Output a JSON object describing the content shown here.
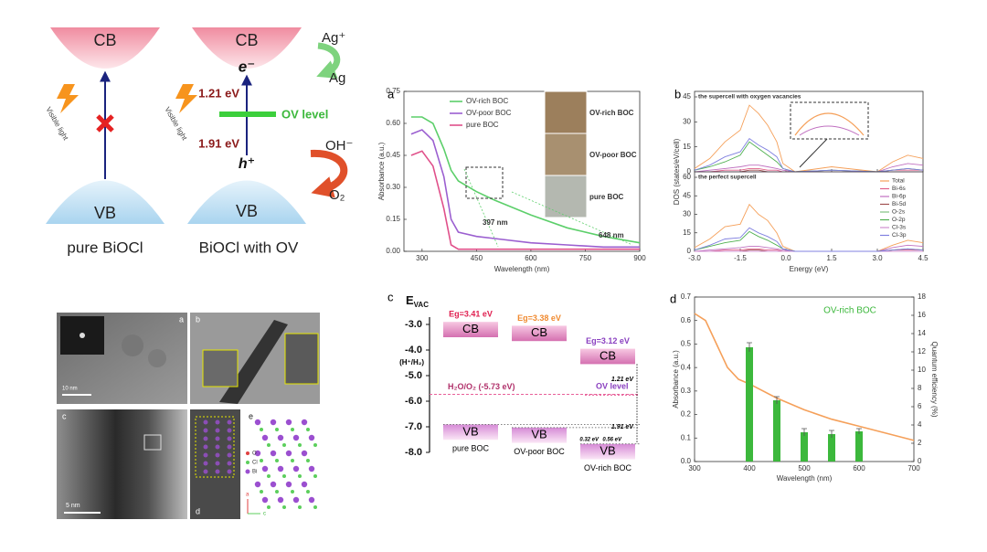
{
  "schematic": {
    "left": {
      "cb": "CB",
      "vb": "VB",
      "light": "Visible light",
      "caption": "pure BiOCl"
    },
    "right": {
      "cb": "CB",
      "vb": "VB",
      "light": "Visible light",
      "caption": "BiOCl with OV",
      "electron": "e⁻",
      "hole": "h⁺",
      "gap_upper": "1.21 eV",
      "gap_lower": "1.91 eV",
      "ov": "OV level",
      "ag_ion": "Ag⁺",
      "ag": "Ag",
      "oh": "OH⁻",
      "o2": "O₂"
    }
  },
  "micrographs": {
    "panels": [
      "a",
      "b",
      "c",
      "d",
      "e"
    ],
    "scale_bars": [
      "10 nm",
      "5 nm"
    ],
    "legend": [
      "O",
      "Cl",
      "Bi"
    ],
    "axis_labels": [
      "a",
      "c"
    ]
  },
  "chart_data": [
    {
      "type": "line",
      "label": "a",
      "xlabel": "Wavelength (nm)",
      "ylabel": "Absorbance (a.u.)",
      "x": [
        270,
        300,
        330,
        360,
        380,
        400,
        450,
        500,
        600,
        700,
        800,
        900
      ],
      "xlim": [
        250,
        900
      ],
      "xticks": [
        300,
        450,
        600,
        750,
        900
      ],
      "ylim": [
        0,
        0.75
      ],
      "yticks": [
        {
          "value": 0,
          "label": "0.00"
        },
        0.15,
        {
          "value": 0.3,
          "label": "0.30"
        },
        0.45,
        {
          "value": 0.6,
          "label": "0.60"
        },
        0.75
      ],
      "series": [
        {
          "name": "OV-rich BOC",
          "color": "#5ccf6a",
          "values": [
            0.63,
            0.63,
            0.6,
            0.48,
            0.38,
            0.33,
            0.28,
            0.24,
            0.17,
            0.11,
            0.07,
            0.04
          ]
        },
        {
          "name": "OV-poor BOC",
          "color": "#9b5fd0",
          "values": [
            0.55,
            0.57,
            0.52,
            0.35,
            0.15,
            0.09,
            0.07,
            0.06,
            0.04,
            0.03,
            0.02,
            0.02
          ]
        },
        {
          "name": "pure BOC",
          "color": "#e0508a",
          "values": [
            0.45,
            0.47,
            0.4,
            0.2,
            0.03,
            0.01,
            0.01,
            0.01,
            0.01,
            0.01,
            0.01,
            0.01
          ]
        }
      ],
      "annotations": [
        "397 nm",
        "648 nm"
      ],
      "inset_labels": [
        "OV-rich BOC",
        "OV-poor BOC",
        "pure BOC"
      ]
    },
    {
      "type": "dos",
      "label": "b",
      "xlabel": "Energy (eV)",
      "ylabel": "DOS (states/eV/cell)",
      "x": [
        -3,
        -2.5,
        -2,
        -1.5,
        -1.2,
        -0.9,
        -0.6,
        -0.3,
        -0.1,
        0.3,
        1.5,
        3,
        3.5,
        4,
        4.5
      ],
      "xlim": [
        -3,
        4.5
      ],
      "xticks": [
        {
          "value": -3,
          "label": "-3.0"
        },
        {
          "value": -1.5,
          "label": "-1.5"
        },
        {
          "value": 0,
          "label": "0.0"
        },
        {
          "value": 1.5,
          "label": "1.5"
        },
        {
          "value": 3,
          "label": "3.0"
        },
        {
          "value": 4.5,
          "label": "4.5"
        }
      ],
      "series": [
        {
          "name": "Total",
          "color": "#f5a05a"
        },
        {
          "name": "Bi-6s",
          "color": "#e0608a"
        },
        {
          "name": "Bi-6p",
          "color": "#c070c0"
        },
        {
          "name": "Bi-5d",
          "color": "#a05050"
        },
        {
          "name": "O-2s",
          "color": "#80c080"
        },
        {
          "name": "O-2p",
          "color": "#50b050"
        },
        {
          "name": "Cl-3s",
          "color": "#d090d0"
        },
        {
          "name": "Cl-3p",
          "color": "#8080e0"
        }
      ],
      "panels": [
        {
          "title": "the supercell with oxygen vacancies",
          "ylim": [
            0,
            45
          ],
          "yticks": [
            0,
            15,
            30,
            45
          ],
          "values": [
            [
              2,
              8,
              18,
              25,
              40,
              35,
              28,
              18,
              5,
              0,
              3,
              0,
              6,
              10,
              8
            ],
            [
              0,
              0,
              1,
              1,
              2,
              2,
              1,
              1,
              0,
              0,
              0,
              0,
              1,
              1,
              1
            ],
            [
              0,
              1,
              2,
              3,
              4,
              4,
              3,
              2,
              1,
              0,
              1,
              0,
              3,
              5,
              4
            ],
            [
              0,
              0,
              0,
              0,
              1,
              1,
              0,
              0,
              0,
              0,
              0,
              0,
              0,
              0,
              0
            ],
            [
              0,
              0,
              0,
              0,
              0,
              0,
              0,
              0,
              0,
              0,
              0,
              0,
              0,
              0,
              0
            ],
            [
              1,
              3,
              6,
              10,
              18,
              14,
              10,
              6,
              2,
              0,
              1,
              0,
              1,
              2,
              1
            ],
            [
              0,
              0,
              0,
              0,
              0,
              0,
              0,
              0,
              0,
              0,
              0,
              0,
              0,
              0,
              0
            ],
            [
              1,
              4,
              9,
              12,
              20,
              16,
              13,
              9,
              2,
              0,
              1,
              0,
              1,
              2,
              1
            ]
          ]
        },
        {
          "title": "the perfect supercell",
          "ylim": [
            0,
            60
          ],
          "yticks": [
            0,
            15,
            30,
            45,
            60
          ],
          "values": [
            [
              3,
              10,
              20,
              22,
              38,
              30,
              25,
              15,
              4,
              0,
              0,
              0,
              5,
              9,
              7
            ],
            [
              0,
              0,
              1,
              1,
              2,
              2,
              1,
              1,
              0,
              0,
              0,
              0,
              1,
              1,
              1
            ],
            [
              0,
              1,
              2,
              3,
              4,
              4,
              3,
              2,
              1,
              0,
              0,
              0,
              3,
              5,
              4
            ],
            [
              0,
              0,
              0,
              0,
              1,
              1,
              0,
              0,
              0,
              0,
              0,
              0,
              0,
              0,
              0
            ],
            [
              0,
              0,
              0,
              0,
              0,
              0,
              0,
              0,
              0,
              0,
              0,
              0,
              0,
              0,
              0
            ],
            [
              1,
              4,
              7,
              9,
              16,
              12,
              9,
              5,
              2,
              0,
              0,
              0,
              1,
              2,
              1
            ],
            [
              0,
              0,
              0,
              0,
              0,
              0,
              0,
              0,
              0,
              0,
              0,
              0,
              0,
              0,
              0
            ],
            [
              1,
              5,
              10,
              11,
              19,
              15,
              12,
              8,
              2,
              0,
              0,
              0,
              1,
              2,
              1
            ]
          ]
        }
      ]
    },
    {
      "type": "bar-line",
      "label": "d",
      "xlabel": "Wavelength (nm)",
      "ylabel": "Absorbance (a.u.)",
      "y2label": "Quantum efficiency (%)",
      "legend_label": "OV-rich BOC",
      "xlim": [
        300,
        700
      ],
      "xticks": [
        300,
        400,
        500,
        600,
        700
      ],
      "ylim": [
        0,
        0.7
      ],
      "yticks": [
        {
          "value": 0,
          "label": "0.0"
        },
        0.1,
        0.2,
        0.3,
        0.4,
        0.5,
        0.6,
        0.7
      ],
      "y2lim": [
        0,
        18
      ],
      "y2ticks": [
        0,
        2,
        4,
        6,
        8,
        10,
        12,
        14,
        16,
        18
      ],
      "series": [
        {
          "color": "#f5a05a",
          "x": [
            300,
            320,
            340,
            360,
            380,
            400,
            450,
            500,
            550,
            600,
            650,
            700
          ],
          "values": [
            0.63,
            0.6,
            0.5,
            0.4,
            0.35,
            0.33,
            0.27,
            0.22,
            0.18,
            0.15,
            0.12,
            0.09
          ]
        },
        {
          "axis": "y2",
          "color": "#3cb83c",
          "x": [
            400,
            450,
            500,
            550,
            600
          ],
          "values": [
            12.5,
            6.7,
            3.2,
            3,
            3.3
          ],
          "errors": [
            0.5,
            0.4,
            0.4,
            0.4,
            0.3
          ]
        }
      ]
    }
  ],
  "band_diagram": {
    "label": "c",
    "axis_label": "E",
    "axis_label_sub": "VAC",
    "ref_label": "(H⁺/H₂)",
    "ylim": [
      -2.5,
      -8.5
    ],
    "yticks": [
      {
        "value": -3,
        "label": "-3.0"
      },
      {
        "value": -4,
        "label": "-4.0"
      },
      {
        "value": -5,
        "label": "-5.0"
      },
      {
        "value": -6,
        "label": "-6.0"
      },
      {
        "value": -7,
        "label": "-7.0"
      },
      {
        "value": -8,
        "label": "-8.0"
      }
    ],
    "materials": [
      {
        "name": "pure BOC",
        "eg": "Eg=3.41 eV",
        "eg_color": "#e02050",
        "cb": -3.5,
        "vb": -6.91,
        "cb_label": "CB",
        "vb_label": "VB"
      },
      {
        "name": "OV-poor BOC",
        "eg": "Eg=3.38 eV",
        "eg_color": "#f08a30",
        "cb": -3.65,
        "vb": -7.03,
        "cb_label": "CB",
        "vb_label": "VB"
      },
      {
        "name": "OV-rich BOC",
        "eg": "Eg=3.12 eV",
        "eg_color": "#8a40c0",
        "cb": -4.55,
        "vb": -7.67,
        "cb_label": "CB",
        "vb_label": "VB"
      }
    ],
    "h2o_label": "H₂O/O₂ (-5.73 eV)",
    "h2o_level": -5.73,
    "ov_label": "OV  level",
    "ov_level": -5.76,
    "gaps": [
      "1.21 eV",
      "1.91 eV",
      "0.32 eV",
      "0.56 eV"
    ]
  }
}
